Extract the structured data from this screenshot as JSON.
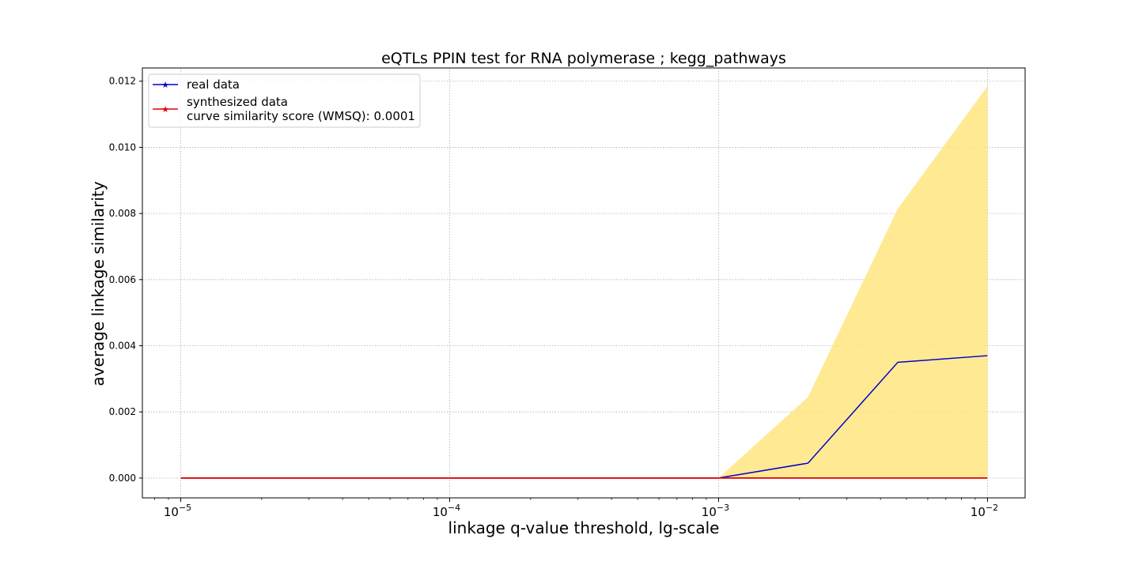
{
  "chart_data": {
    "type": "line",
    "title": "eQTLs PPIN test for RNA polymerase ; kegg_pathways",
    "xlabel": "linkage q-value threshold, lg-scale",
    "ylabel": "average linkage similarity",
    "x_scale": "log",
    "xlim": [
      7.2e-06,
      0.0138
    ],
    "ylim": [
      -0.0006,
      0.0124
    ],
    "grid": true,
    "legend_position": "top-left",
    "x_ticks": [
      {
        "value": 1e-05,
        "base": "10",
        "exp": "−5"
      },
      {
        "value": 0.0001,
        "base": "10",
        "exp": "−4"
      },
      {
        "value": 0.001,
        "base": "10",
        "exp": "−3"
      },
      {
        "value": 0.01,
        "base": "10",
        "exp": "−2"
      }
    ],
    "y_ticks": [
      "0.000",
      "0.002",
      "0.004",
      "0.006",
      "0.008",
      "0.010",
      "0.012"
    ],
    "x": [
      1e-05,
      0.0001,
      0.001,
      0.00215,
      0.00464,
      0.01
    ],
    "series": [
      {
        "name": "real data",
        "color": "#0000cc",
        "values": [
          0,
          0,
          0,
          0.00045,
          0.0035,
          0.0037
        ]
      },
      {
        "name": "synthesized data",
        "color": "#dd0000",
        "values": [
          0,
          0,
          0,
          0,
          0,
          0
        ]
      }
    ],
    "band": {
      "color": "#ffe680",
      "lower": [
        0,
        0,
        0,
        0,
        0,
        0
      ],
      "upper": [
        0,
        0,
        0,
        0.00245,
        0.00815,
        0.01185
      ]
    },
    "legend_note": "curve similarity score (WMSQ): 0.0001"
  }
}
